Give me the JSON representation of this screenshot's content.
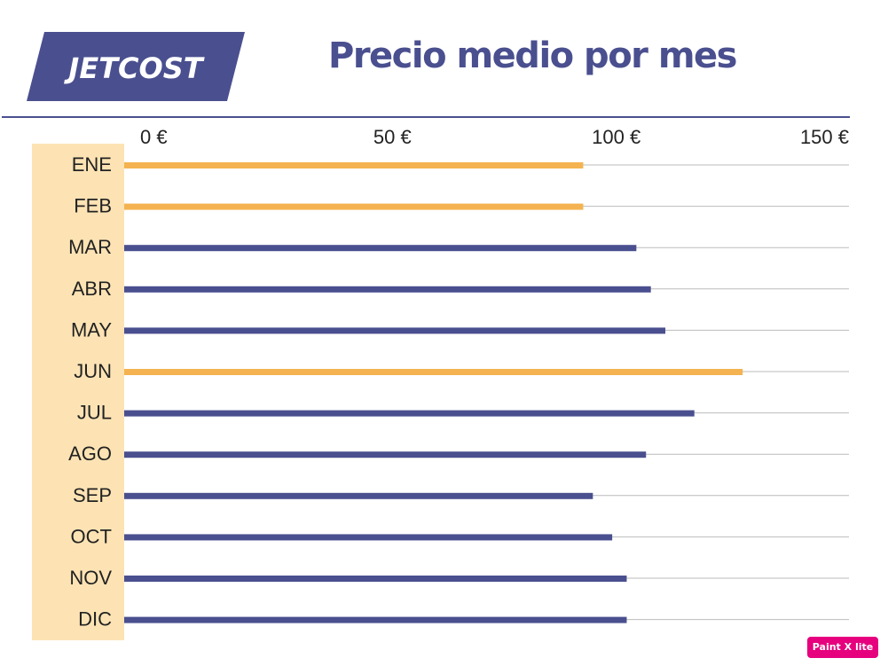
{
  "brand": {
    "logo_text": "JETCOST",
    "logo_color": "#4a4f8f",
    "logo_text_color": "#ffffff"
  },
  "badge": {
    "text": "Paint X lite",
    "color": "#e6007e"
  },
  "chart_data": {
    "type": "bar",
    "orientation": "horizontal",
    "title": "Precio medio por mes",
    "categories": [
      "ENE",
      "FEB",
      "MAR",
      "ABR",
      "MAY",
      "JUN",
      "JUL",
      "AGO",
      "SEP",
      "OCT",
      "NOV",
      "DIC"
    ],
    "values": [
      95,
      95,
      106,
      109,
      112,
      128,
      118,
      108,
      97,
      101,
      104,
      104
    ],
    "highlighted": [
      true,
      true,
      false,
      false,
      false,
      true,
      false,
      false,
      false,
      false,
      false,
      false
    ],
    "xlim": [
      0,
      150
    ],
    "x_ticks": [
      {
        "value": 0,
        "label": "0 €"
      },
      {
        "value": 50,
        "label": "50 €"
      },
      {
        "value": 100,
        "label": "100 €"
      },
      {
        "value": 150,
        "label": "150 €"
      }
    ],
    "xlabel": "",
    "ylabel": "",
    "grid": true,
    "colors": {
      "default": "#4a4f8f",
      "highlight": "#f4b350",
      "label_panel": "#fde3b4",
      "grid": "#bbbbbb"
    }
  }
}
